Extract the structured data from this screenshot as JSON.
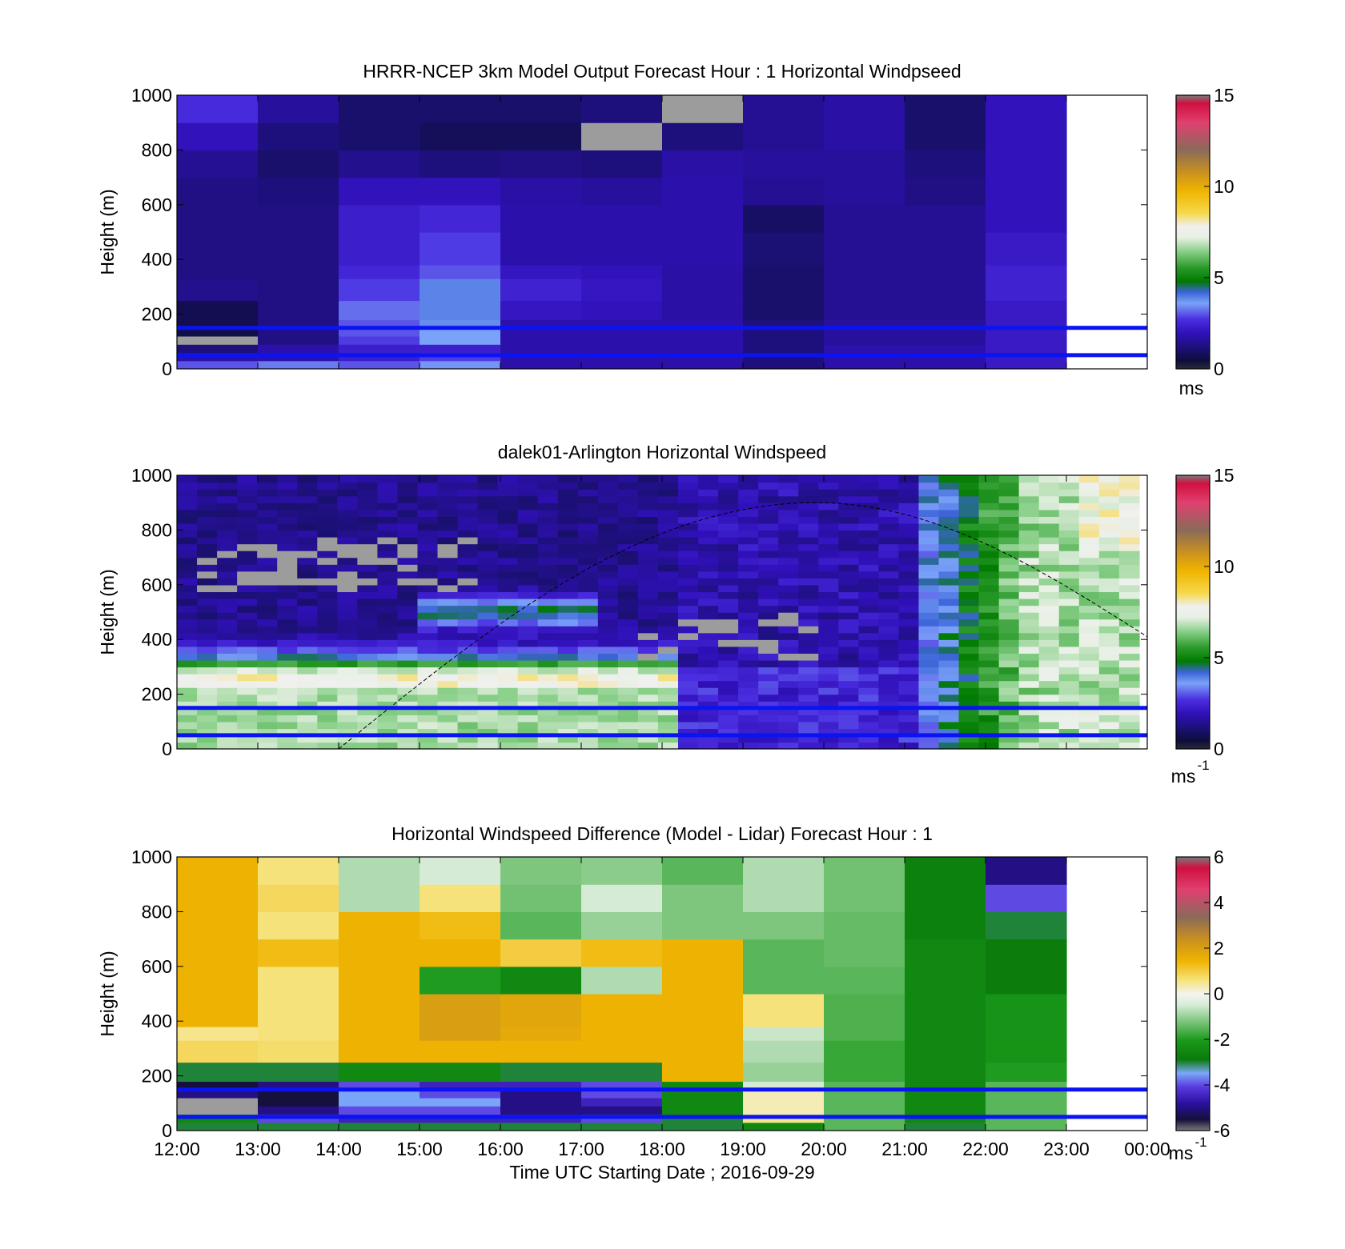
{
  "figure": {
    "x_tick_labels": [
      "12:00",
      "13:00",
      "14:00",
      "15:00",
      "16:00",
      "17:00",
      "18:00",
      "19:00",
      "20:00",
      "21:00",
      "22:00",
      "23:00",
      "00:00"
    ],
    "x_axis_label": "Time UTC  Starting Date ; 2016-09-29",
    "boundary_lines_m": [
      150,
      50
    ],
    "boundary_line_color": "#0a14f0"
  },
  "chart_data": [
    {
      "type": "heatmap",
      "title": "HRRR-NCEP 3km Model Output   Forecast Hour : 1 Horizontal Windpseed",
      "xlabel": "",
      "ylabel": "Height (m)",
      "xlim_hours": [
        12,
        24
      ],
      "ylim": [
        0,
        1000
      ],
      "y_ticks": [
        "0",
        "200",
        "400",
        "600",
        "800",
        "1000"
      ],
      "colorbar": {
        "min": 0,
        "max": 15,
        "ticks": [
          "0",
          "5",
          "10",
          "15"
        ],
        "unit": "ms",
        "unit_sup": ""
      },
      "time_bins_hours": [
        12,
        13,
        14,
        15,
        16,
        17,
        18,
        19,
        20,
        21,
        22,
        23
      ],
      "height_edges_m": [
        0,
        30,
        60,
        90,
        120,
        150,
        180,
        250,
        330,
        380,
        500,
        600,
        700,
        800,
        900,
        1000
      ],
      "values_ms": [
        [
          3.0,
          3.3,
          3.0,
          3.5,
          1.8,
          1.8,
          1.8,
          1.2,
          1.8,
          1.8,
          2.2
        ],
        [
          1.8,
          1.8,
          2.3,
          2.8,
          1.8,
          1.8,
          1.8,
          1.2,
          1.8,
          1.8,
          2.2
        ],
        [
          1.2,
          1.8,
          2.3,
          2.3,
          1.8,
          1.8,
          1.8,
          1.2,
          1.8,
          1.8,
          2.2
        ],
        [
          null,
          1.3,
          2.8,
          3.6,
          1.8,
          1.8,
          1.8,
          1.2,
          1.6,
          1.6,
          2.2
        ],
        [
          0.6,
          1.3,
          3.0,
          3.6,
          1.8,
          1.8,
          1.8,
          1.2,
          1.6,
          1.6,
          2.2
        ],
        [
          0.7,
          1.3,
          3.0,
          3.8,
          1.8,
          1.8,
          1.8,
          1.2,
          1.6,
          1.6,
          2.2
        ],
        [
          0.7,
          1.3,
          3.2,
          3.9,
          2.1,
          2.0,
          1.7,
          1.0,
          1.5,
          1.5,
          2.2
        ],
        [
          1.4,
          1.3,
          2.8,
          3.9,
          2.4,
          2.1,
          1.7,
          1.0,
          1.5,
          1.5,
          2.4
        ],
        [
          1.3,
          1.3,
          2.5,
          3.0,
          2.1,
          2.0,
          1.7,
          1.0,
          1.5,
          1.5,
          2.4
        ],
        [
          1.3,
          1.3,
          2.3,
          2.8,
          1.8,
          1.8,
          1.8,
          1.1,
          1.5,
          1.5,
          2.2
        ],
        [
          1.3,
          1.3,
          2.3,
          2.5,
          1.8,
          1.8,
          1.8,
          0.9,
          1.5,
          1.5,
          2.0
        ],
        [
          1.3,
          1.2,
          2.0,
          2.0,
          1.7,
          1.6,
          1.8,
          1.5,
          1.6,
          1.3,
          2.0
        ],
        [
          1.5,
          1.0,
          1.4,
          1.2,
          1.3,
          1.2,
          1.7,
          1.6,
          1.6,
          1.2,
          2.0
        ],
        [
          2.0,
          1.2,
          1.0,
          0.8,
          0.8,
          null,
          1.2,
          1.5,
          1.7,
          1.0,
          2.0
        ],
        [
          2.6,
          1.6,
          1.0,
          1.0,
          1.0,
          1.2,
          null,
          1.5,
          1.7,
          1.0,
          2.0
        ]
      ]
    },
    {
      "type": "heatmap",
      "title": "dalek01-Arlington  Horizontal Windspeed",
      "xlabel": "",
      "ylabel": "Height (m)",
      "xlim_hours": [
        12,
        24
      ],
      "ylim": [
        0,
        1000
      ],
      "y_ticks": [
        "0",
        "200",
        "400",
        "600",
        "800",
        "1000"
      ],
      "colorbar": {
        "min": 0,
        "max": 15,
        "ticks": [
          "0",
          "5",
          "10",
          "15"
        ],
        "unit": "ms",
        "unit_sup": "-1"
      },
      "time_range_hours": [
        12,
        23.9
      ],
      "num_time_bins": 48,
      "height_range_m": [
        0,
        1000
      ],
      "num_height_bins": 40,
      "profile_description": "windspeed (m/s) vs height: green low-level jet near 200-300 m before 18 UTC, weak flow aloft with missing (gray) patches, strengthening to green/light values above after 21 UTC",
      "solar_curve": {
        "start": [
          14,
          0
        ],
        "peak": [
          19.9,
          900
        ],
        "end_height": 410
      }
    },
    {
      "type": "heatmap",
      "title": "Horizontal Windspeed Difference (Model - Lidar) Forecast Hour : 1",
      "xlabel": "Time UTC  Starting Date ; 2016-09-29",
      "ylabel": "Height (m)",
      "xlim_hours": [
        12,
        24
      ],
      "ylim": [
        0,
        1000
      ],
      "y_ticks": [
        "0",
        "200",
        "400",
        "600",
        "800",
        "1000"
      ],
      "colorbar": {
        "min": -6,
        "max": 6,
        "ticks": [
          "-6",
          "-4",
          "-2",
          "0",
          "2",
          "4",
          "6"
        ],
        "unit": "ms",
        "unit_sup": "-1"
      },
      "time_bins_hours": [
        12,
        13,
        14,
        15,
        16,
        17,
        18,
        19,
        20,
        21,
        22,
        23
      ],
      "height_edges_m": [
        0,
        30,
        60,
        90,
        120,
        150,
        180,
        250,
        330,
        380,
        500,
        600,
        700,
        800,
        900,
        1000
      ],
      "values_ms": [
        [
          -3.0,
          -3.0,
          -3.0,
          -3.0,
          -3.0,
          -3.0,
          -3.0,
          -2.5,
          -1.5,
          -3.0,
          -1.5
        ],
        [
          -2.5,
          -4.0,
          -4.5,
          -4.5,
          -4.5,
          -4.0,
          -3.0,
          0.5,
          -1.5,
          -2.5,
          -1.5
        ],
        [
          null,
          -5.0,
          -4.0,
          -4.0,
          -5.0,
          -5.0,
          -2.5,
          0.3,
          -1.5,
          -2.5,
          -1.5
        ],
        [
          null,
          -5.5,
          -3.5,
          -3.5,
          -5.0,
          -4.5,
          -2.5,
          0.3,
          -1.5,
          -2.5,
          -1.5
        ],
        [
          -5.0,
          -5.5,
          -3.5,
          -4.0,
          -5.0,
          -4.0,
          -2.5,
          0.3,
          -1.5,
          -2.5,
          -1.5
        ],
        [
          -5.5,
          -5.0,
          -4.0,
          -4.5,
          -4.5,
          -4.0,
          -2.5,
          -0.5,
          -1.5,
          -2.5,
          -1.5
        ],
        [
          -3.0,
          -3.0,
          -2.5,
          -2.5,
          -3.0,
          -3.0,
          1.5,
          -1.0,
          -1.8,
          -2.5,
          -2.0
        ],
        [
          0.8,
          0.7,
          1.5,
          1.5,
          1.5,
          1.5,
          1.5,
          -0.8,
          -1.8,
          -2.5,
          -2.2
        ],
        [
          0.5,
          0.6,
          1.5,
          2.0,
          1.7,
          1.5,
          1.5,
          -0.6,
          -1.6,
          -2.5,
          -2.2
        ],
        [
          1.5,
          0.6,
          1.5,
          2.0,
          1.8,
          1.5,
          1.5,
          0.6,
          -1.6,
          -2.5,
          -2.2
        ],
        [
          1.5,
          0.6,
          1.5,
          -2.0,
          -2.5,
          -0.8,
          1.5,
          -1.5,
          -1.5,
          -2.5,
          -2.8
        ],
        [
          1.5,
          1.3,
          1.5,
          1.5,
          1.0,
          1.3,
          1.5,
          -1.5,
          -1.4,
          -2.5,
          -2.8
        ],
        [
          1.5,
          0.6,
          1.5,
          1.3,
          -1.5,
          -1.0,
          -1.2,
          -1.2,
          -1.4,
          -2.7,
          -3.0
        ],
        [
          1.5,
          0.8,
          -0.8,
          0.6,
          -1.3,
          -0.5,
          -1.2,
          -0.8,
          -1.3,
          -2.7,
          -4.0
        ],
        [
          1.5,
          0.6,
          -0.8,
          -0.5,
          -1.2,
          -1.1,
          -1.5,
          -0.8,
          -1.3,
          -2.7,
          -5.0
        ]
      ]
    }
  ]
}
